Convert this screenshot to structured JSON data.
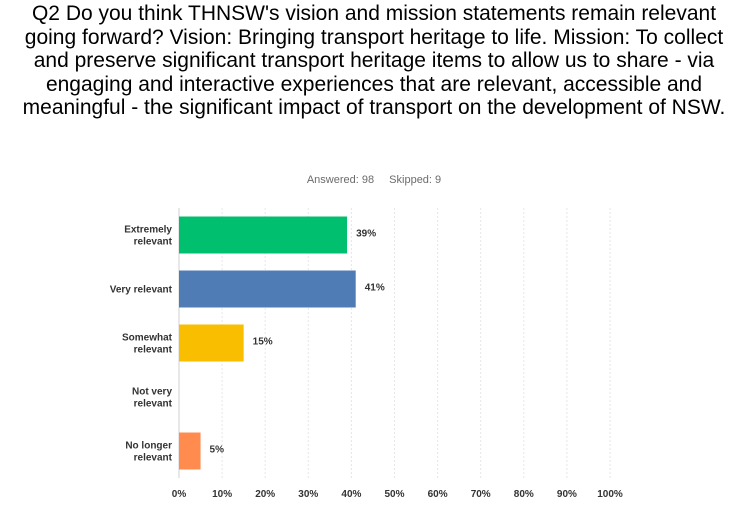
{
  "question": {
    "title": "Q2 Do you think THNSW's vision and mission statements remain relevant going forward? Vision: Bringing transport heritage to life. Mission: To collect and preserve significant transport heritage items to allow us to share - via engaging and interactive experiences that are relevant, accessible and meaningful - the significant impact of transport on the development of NSW.",
    "answered": "Answered: 98",
    "skipped": "Skipped: 9"
  },
  "chart_data": {
    "type": "bar",
    "orientation": "horizontal",
    "title": "",
    "xlabel": "",
    "ylabel": "",
    "xlim": [
      0,
      100
    ],
    "grid": true,
    "categories": [
      [
        "Extremely",
        "relevant"
      ],
      [
        "Very relevant"
      ],
      [
        "Somewhat",
        "relevant"
      ],
      [
        "Not very",
        "relevant"
      ],
      [
        "No longer",
        "relevant"
      ]
    ],
    "values": [
      39,
      41,
      15,
      0,
      5
    ],
    "value_labels": [
      "39%",
      "41%",
      "15%",
      "",
      "5%"
    ],
    "colors": [
      "#00bf6f",
      "#507cb6",
      "#f9be00",
      "#6bc8cd",
      "#ff8b4f"
    ],
    "ticks": [
      0,
      10,
      20,
      30,
      40,
      50,
      60,
      70,
      80,
      90,
      100
    ],
    "tick_labels": [
      "0%",
      "10%",
      "20%",
      "30%",
      "40%",
      "50%",
      "60%",
      "70%",
      "80%",
      "90%",
      "100%"
    ]
  }
}
